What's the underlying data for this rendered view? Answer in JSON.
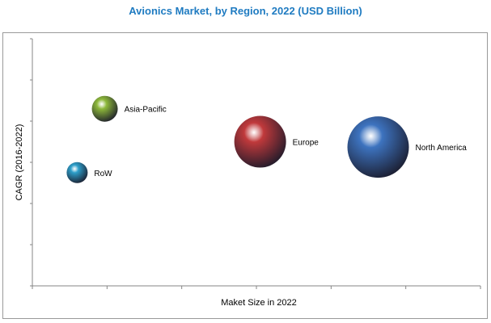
{
  "chart_data": {
    "type": "scatter",
    "subtype": "bubble",
    "title": "Avionics Market, by Region, 2022  (USD Billion)",
    "xlabel": "Maket Size in 2022",
    "ylabel": "CAGR (2016-2022)",
    "xlim": [
      0,
      6
    ],
    "ylim": [
      0,
      6
    ],
    "x_ticks": 7,
    "y_ticks": 7,
    "grid": false,
    "tick_labels_shown": false,
    "series": [
      {
        "name": "Asia-Pacific",
        "x": 0.97,
        "y": 4.3,
        "size": 16,
        "color": "#8db83a"
      },
      {
        "name": "RoW",
        "x": 0.6,
        "y": 2.75,
        "size": 13,
        "color": "#2d9ec9"
      },
      {
        "name": "Europe",
        "x": 3.05,
        "y": 3.5,
        "size": 32,
        "color": "#c0393b"
      },
      {
        "name": "North America",
        "x": 4.63,
        "y": 3.37,
        "size": 38,
        "color": "#3d73bf"
      }
    ]
  }
}
